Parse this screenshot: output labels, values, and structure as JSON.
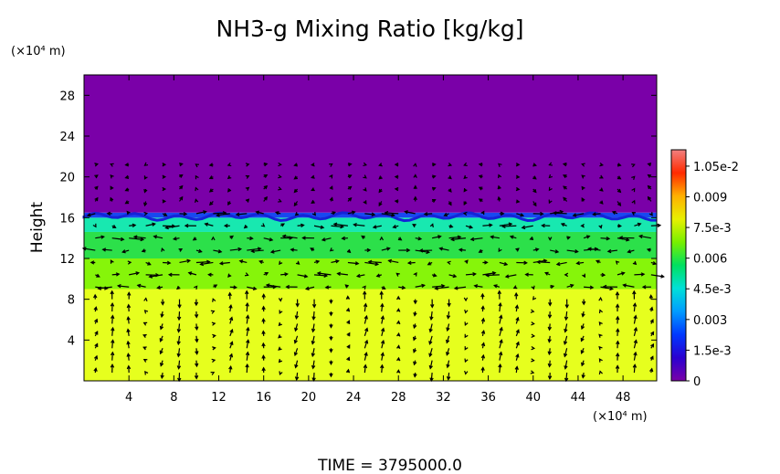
{
  "chart_data": {
    "type": "heatmap",
    "title": "NH3-g Mixing Ratio [kg/kg]",
    "ylabel": "Height",
    "x_unit": "(×10⁴ m)",
    "y_unit": "(×10⁴ m)",
    "time_label": "TIME  =  3795000.0",
    "xlim": [
      0,
      51
    ],
    "ylim": [
      0,
      30
    ],
    "x_ticks": [
      "4",
      "8",
      "12",
      "16",
      "20",
      "24",
      "28",
      "32",
      "36",
      "40",
      "44",
      "48"
    ],
    "x_tick_values": [
      4,
      8,
      12,
      16,
      20,
      24,
      28,
      32,
      36,
      40,
      44,
      48
    ],
    "y_ticks": [
      "4",
      "8",
      "12",
      "16",
      "20",
      "24",
      "28"
    ],
    "y_tick_values": [
      4,
      8,
      12,
      16,
      20,
      24,
      28
    ],
    "colorbar": {
      "range": [
        0,
        0.0113
      ],
      "labels": [
        "0",
        "1.5e-3",
        "0.003",
        "4.5e-3",
        "0.006",
        "7.5e-3",
        "0.009",
        "1.05e-2"
      ],
      "label_values": [
        0,
        0.0015,
        0.003,
        0.0045,
        0.006,
        0.0075,
        0.009,
        0.0105
      ],
      "colors": [
        "#7a00a8",
        "#2a00d0",
        "#0038ff",
        "#009cff",
        "#00e0d8",
        "#00e060",
        "#78f000",
        "#e8f000",
        "#ffb000",
        "#ff2a00",
        "#f08080"
      ]
    },
    "field_layers": [
      {
        "y_from": 0,
        "y_to": 9,
        "value": 0.008,
        "color": "#e6ff1e"
      },
      {
        "y_from": 9,
        "y_to": 12,
        "value": 0.0073,
        "color": "#86f50a"
      },
      {
        "y_from": 12,
        "y_to": 14.6,
        "value": 0.006,
        "color": "#2ce04a"
      },
      {
        "y_from": 14.6,
        "y_to": 16.0,
        "value": 0.0045,
        "color": "#18e8b0"
      },
      {
        "y_from": 16.0,
        "y_to": 16.5,
        "value": 0.0015,
        "color": "#1848f0"
      },
      {
        "y_from": 16.5,
        "y_to": 30,
        "value": 0,
        "color": "#7a00a8"
      }
    ]
  }
}
